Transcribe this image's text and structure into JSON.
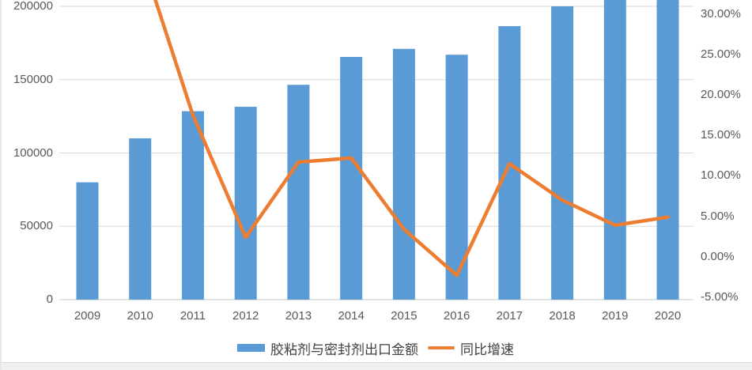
{
  "legend": {
    "bar_label": "胶粘剂与密封剂出口金额",
    "line_label": "同比增速"
  },
  "colors": {
    "bar": "#5B9BD5",
    "line": "#ED7D31",
    "gridline": "#D9D9D9",
    "axis_line": "#C6C6C6",
    "tick_text": "#595959",
    "legend_text": "#404040",
    "footer_strip": "#f0f0f0"
  },
  "chart_data": {
    "type": "bar",
    "title": "",
    "categories": [
      "2009",
      "2010",
      "2011",
      "2012",
      "2013",
      "2014",
      "2015",
      "2016",
      "2017",
      "2018",
      "2019",
      "2020"
    ],
    "series": [
      {
        "name": "胶粘剂与密封剂出口金额",
        "kind": "bar",
        "axis": "left",
        "values": [
          80000,
          110000,
          128500,
          131500,
          146500,
          165500,
          171000,
          167000,
          186500,
          200000,
          208000,
          212000
        ]
      },
      {
        "name": "同比增速",
        "kind": "line",
        "axis": "right",
        "values": [
          null,
          37.5,
          17.5,
          2.4,
          11.7,
          12.2,
          3.4,
          -2.3,
          11.5,
          7.0,
          3.9,
          4.9
        ]
      }
    ],
    "left_axis": {
      "ticks": [
        0,
        50000,
        100000,
        150000,
        200000
      ],
      "tick_labels": [
        "0",
        "50000",
        "100000",
        "150000",
        "200000"
      ],
      "ylim": [
        0,
        250000
      ]
    },
    "right_axis": {
      "ticks": [
        -5,
        0,
        5,
        10,
        15,
        20,
        25,
        30
      ],
      "tick_labels": [
        "-5.00%",
        "0.00%",
        "5.00%",
        "10.00%",
        "15.00%",
        "20.00%",
        "25.00%",
        "30.00%"
      ],
      "ylim": [
        -5,
        35
      ]
    },
    "legend_position": "bottom",
    "grid": true,
    "cropped_top": true
  }
}
